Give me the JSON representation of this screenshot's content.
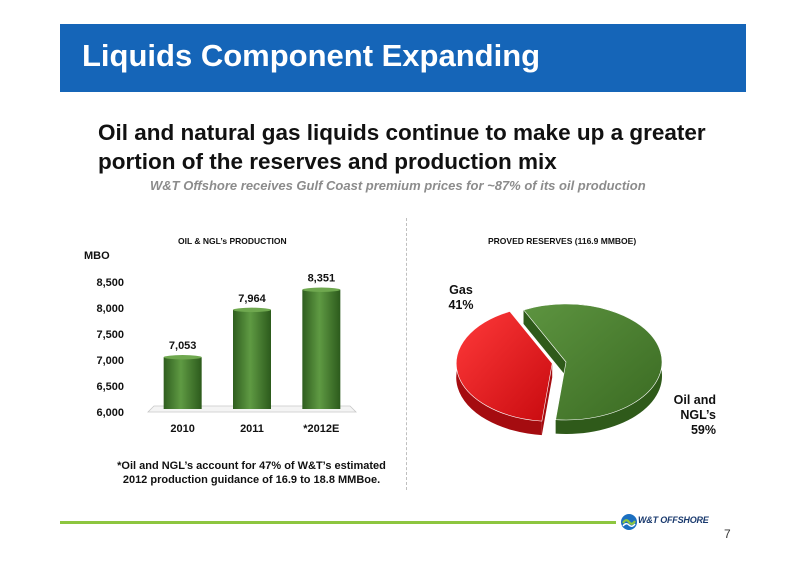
{
  "slide": {
    "title": "Liquids Component Expanding",
    "headline": "Oil and natural gas liquids continue to make up a greater portion of the reserves and production mix",
    "subheadline": "W&T Offshore receives Gulf Coast premium prices for ~87% of its oil production",
    "footnote": "*Oil and NGL’s account for 47% of W&T’s estimated 2012 production guidance of 16.9 to 18.8 MMBoe.",
    "page_number": "7",
    "logo_text": "W&T OFFSHORE",
    "colors": {
      "banner": "#1565b8",
      "bar_green": "#3f7a2a",
      "pie_green": "#4a7f2f",
      "pie_red": "#e8141a",
      "footer_line": "#8dc63f"
    }
  },
  "chart_data": [
    {
      "type": "bar",
      "title": "OIL & NGL’s PRODUCTION",
      "ylabel": "MBO",
      "categories": [
        "2010",
        "2011",
        "*2012E"
      ],
      "values": [
        7053,
        7964,
        8351
      ],
      "value_labels": [
        "7,053",
        "7,964",
        "8,351"
      ],
      "ylim": [
        6000,
        8500
      ],
      "yticks": [
        6000,
        6500,
        7000,
        7500,
        8000,
        8500
      ],
      "ytick_labels": [
        "6,000",
        "6,500",
        "7,000",
        "7,500",
        "8,000",
        "8,500"
      ],
      "grid": false
    },
    {
      "type": "pie",
      "title": "PROVED RESERVES (116.9 MMBOE)",
      "slices": [
        {
          "label_lines": [
            "Gas",
            "41%"
          ],
          "value": 41,
          "color": "#e8141a",
          "exploded": true
        },
        {
          "label_lines": [
            "Oil and",
            "NGL’s",
            "59%"
          ],
          "value": 59,
          "color": "#4a7f2f",
          "exploded": false
        }
      ]
    }
  ]
}
